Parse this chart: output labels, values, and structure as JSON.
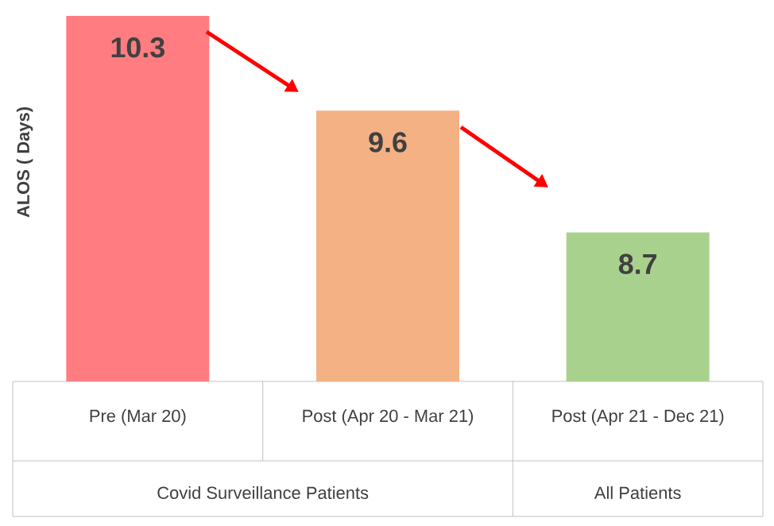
{
  "chart_data": {
    "type": "bar",
    "ylabel": "ALOS  ( Days)",
    "categories": [
      "Pre (Mar 20)",
      "Post (Apr 20 - Mar 21)",
      "Post (Apr 21 - Dec 21)"
    ],
    "values": [
      10.3,
      9.6,
      8.7
    ],
    "colors": [
      "#ff7c80",
      "#f4b183",
      "#a9d18e"
    ],
    "ylim": [
      7.6,
      10.3
    ],
    "data_labels": true,
    "annotations": [
      "Covid Surveillance Patients",
      "All Patients"
    ]
  }
}
